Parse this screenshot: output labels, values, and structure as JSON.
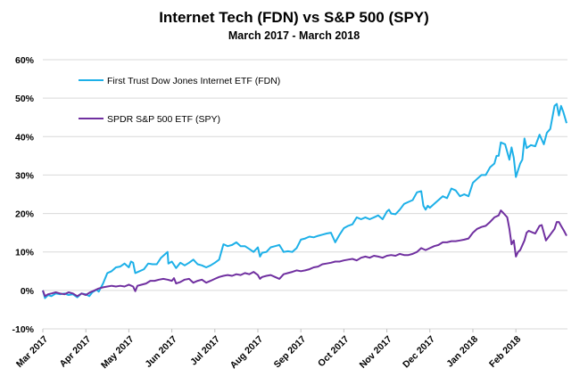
{
  "chart_data": {
    "type": "line",
    "title": "Internet Tech (FDN) vs S&P 500 (SPY)",
    "subtitle": "March 2017  - March 2018",
    "xlabel": "",
    "ylabel": "",
    "ylim": [
      -0.1,
      0.6
    ],
    "y_ticks": [
      "-10%",
      "0%",
      "10%",
      "20%",
      "30%",
      "40%",
      "50%",
      "60%"
    ],
    "x_ticks": [
      "Mar 2017",
      "Apr 2017",
      "May 2017",
      "Jun 2017",
      "Jul 2017",
      "Aug 2017",
      "Sep 2017",
      "Oct 2017",
      "Nov 2017",
      "Dec 2017",
      "Jan 2018",
      "Feb 2018"
    ],
    "grid": "horizontal",
    "legend_position": "top-left",
    "x_unit": "months since Mar 2017",
    "series": [
      {
        "name": "First Trust Dow Jones Internet ETF (FDN)",
        "color": "#1DB0E8",
        "points": [
          [
            0.0,
            0.0
          ],
          [
            0.05,
            -0.02
          ],
          [
            0.12,
            -0.012
          ],
          [
            0.2,
            -0.015
          ],
          [
            0.3,
            -0.008
          ],
          [
            0.4,
            -0.01
          ],
          [
            0.5,
            -0.008
          ],
          [
            0.6,
            -0.012
          ],
          [
            0.7,
            -0.01
          ],
          [
            0.8,
            -0.018
          ],
          [
            0.9,
            -0.008
          ],
          [
            1.0,
            -0.01
          ],
          [
            1.08,
            -0.015
          ],
          [
            1.15,
            -0.005
          ],
          [
            1.25,
            0.002
          ],
          [
            1.3,
            -0.003
          ],
          [
            1.4,
            0.018
          ],
          [
            1.5,
            0.045
          ],
          [
            1.6,
            0.05
          ],
          [
            1.7,
            0.06
          ],
          [
            1.8,
            0.062
          ],
          [
            1.9,
            0.07
          ],
          [
            2.0,
            0.06
          ],
          [
            2.05,
            0.075
          ],
          [
            2.1,
            0.072
          ],
          [
            2.15,
            0.045
          ],
          [
            2.25,
            0.05
          ],
          [
            2.35,
            0.055
          ],
          [
            2.45,
            0.07
          ],
          [
            2.55,
            0.068
          ],
          [
            2.65,
            0.068
          ],
          [
            2.75,
            0.085
          ],
          [
            2.85,
            0.095
          ],
          [
            2.9,
            0.1
          ],
          [
            2.92,
            0.07
          ],
          [
            3.0,
            0.075
          ],
          [
            3.1,
            0.058
          ],
          [
            3.2,
            0.072
          ],
          [
            3.3,
            0.065
          ],
          [
            3.4,
            0.072
          ],
          [
            3.5,
            0.08
          ],
          [
            3.6,
            0.068
          ],
          [
            3.7,
            0.065
          ],
          [
            3.8,
            0.06
          ],
          [
            3.9,
            0.065
          ],
          [
            4.0,
            0.072
          ],
          [
            4.1,
            0.08
          ],
          [
            4.2,
            0.12
          ],
          [
            4.3,
            0.115
          ],
          [
            4.4,
            0.118
          ],
          [
            4.5,
            0.125
          ],
          [
            4.6,
            0.115
          ],
          [
            4.7,
            0.115
          ],
          [
            4.8,
            0.108
          ],
          [
            4.9,
            0.1
          ],
          [
            5.0,
            0.112
          ],
          [
            5.05,
            0.088
          ],
          [
            5.1,
            0.098
          ],
          [
            5.2,
            0.1
          ],
          [
            5.3,
            0.112
          ],
          [
            5.4,
            0.115
          ],
          [
            5.5,
            0.118
          ],
          [
            5.6,
            0.1
          ],
          [
            5.7,
            0.102
          ],
          [
            5.8,
            0.1
          ],
          [
            5.9,
            0.11
          ],
          [
            6.0,
            0.132
          ],
          [
            6.1,
            0.135
          ],
          [
            6.2,
            0.14
          ],
          [
            6.3,
            0.138
          ],
          [
            6.4,
            0.142
          ],
          [
            6.5,
            0.145
          ],
          [
            6.6,
            0.148
          ],
          [
            6.7,
            0.15
          ],
          [
            6.8,
            0.125
          ],
          [
            6.9,
            0.145
          ],
          [
            7.0,
            0.162
          ],
          [
            7.1,
            0.168
          ],
          [
            7.2,
            0.172
          ],
          [
            7.3,
            0.19
          ],
          [
            7.4,
            0.185
          ],
          [
            7.5,
            0.19
          ],
          [
            7.6,
            0.185
          ],
          [
            7.7,
            0.19
          ],
          [
            7.8,
            0.195
          ],
          [
            7.9,
            0.185
          ],
          [
            8.0,
            0.205
          ],
          [
            8.05,
            0.21
          ],
          [
            8.1,
            0.2
          ],
          [
            8.2,
            0.198
          ],
          [
            8.3,
            0.21
          ],
          [
            8.4,
            0.225
          ],
          [
            8.5,
            0.23
          ],
          [
            8.6,
            0.235
          ],
          [
            8.7,
            0.255
          ],
          [
            8.8,
            0.258
          ],
          [
            8.85,
            0.22
          ],
          [
            8.9,
            0.21
          ],
          [
            8.95,
            0.22
          ],
          [
            9.0,
            0.215
          ],
          [
            9.1,
            0.225
          ],
          [
            9.2,
            0.235
          ],
          [
            9.3,
            0.245
          ],
          [
            9.4,
            0.24
          ],
          [
            9.5,
            0.265
          ],
          [
            9.6,
            0.26
          ],
          [
            9.7,
            0.245
          ],
          [
            9.8,
            0.25
          ],
          [
            9.9,
            0.245
          ],
          [
            10.0,
            0.28
          ],
          [
            10.1,
            0.29
          ],
          [
            10.2,
            0.3
          ],
          [
            10.3,
            0.3
          ],
          [
            10.4,
            0.32
          ],
          [
            10.5,
            0.33
          ],
          [
            10.55,
            0.35
          ],
          [
            10.6,
            0.35
          ],
          [
            10.65,
            0.385
          ],
          [
            10.75,
            0.38
          ],
          [
            10.8,
            0.36
          ],
          [
            10.85,
            0.34
          ],
          [
            10.9,
            0.372
          ],
          [
            10.95,
            0.345
          ],
          [
            11.0,
            0.295
          ],
          [
            11.1,
            0.33
          ],
          [
            11.15,
            0.34
          ],
          [
            11.2,
            0.395
          ],
          [
            11.25,
            0.37
          ],
          [
            11.35,
            0.378
          ],
          [
            11.45,
            0.375
          ],
          [
            11.55,
            0.405
          ],
          [
            11.65,
            0.38
          ],
          [
            11.72,
            0.41
          ],
          [
            11.8,
            0.42
          ],
          [
            11.9,
            0.48
          ],
          [
            11.95,
            0.485
          ],
          [
            12.0,
            0.455
          ],
          [
            12.05,
            0.48
          ],
          [
            12.1,
            0.465
          ],
          [
            12.18,
            0.435
          ]
        ]
      },
      {
        "name": "SPDR S&P 500 ETF (SPY)",
        "color": "#7030A0",
        "points": [
          [
            0.0,
            0.0
          ],
          [
            0.05,
            -0.015
          ],
          [
            0.12,
            -0.01
          ],
          [
            0.2,
            -0.008
          ],
          [
            0.3,
            -0.005
          ],
          [
            0.4,
            -0.008
          ],
          [
            0.5,
            -0.01
          ],
          [
            0.6,
            -0.005
          ],
          [
            0.7,
            -0.008
          ],
          [
            0.8,
            -0.015
          ],
          [
            0.9,
            -0.008
          ],
          [
            1.0,
            -0.012
          ],
          [
            1.1,
            -0.005
          ],
          [
            1.2,
            0.0
          ],
          [
            1.3,
            0.005
          ],
          [
            1.4,
            0.008
          ],
          [
            1.5,
            0.01
          ],
          [
            1.6,
            0.012
          ],
          [
            1.7,
            0.01
          ],
          [
            1.8,
            0.012
          ],
          [
            1.9,
            0.01
          ],
          [
            2.0,
            0.015
          ],
          [
            2.1,
            0.01
          ],
          [
            2.15,
            -0.002
          ],
          [
            2.2,
            0.012
          ],
          [
            2.3,
            0.015
          ],
          [
            2.4,
            0.018
          ],
          [
            2.5,
            0.025
          ],
          [
            2.6,
            0.025
          ],
          [
            2.7,
            0.028
          ],
          [
            2.8,
            0.03
          ],
          [
            2.9,
            0.028
          ],
          [
            3.0,
            0.025
          ],
          [
            3.05,
            0.032
          ],
          [
            3.1,
            0.018
          ],
          [
            3.2,
            0.022
          ],
          [
            3.3,
            0.028
          ],
          [
            3.4,
            0.03
          ],
          [
            3.5,
            0.02
          ],
          [
            3.6,
            0.025
          ],
          [
            3.7,
            0.028
          ],
          [
            3.8,
            0.02
          ],
          [
            3.9,
            0.025
          ],
          [
            4.0,
            0.03
          ],
          [
            4.1,
            0.035
          ],
          [
            4.2,
            0.038
          ],
          [
            4.3,
            0.04
          ],
          [
            4.4,
            0.038
          ],
          [
            4.5,
            0.042
          ],
          [
            4.6,
            0.04
          ],
          [
            4.7,
            0.045
          ],
          [
            4.8,
            0.042
          ],
          [
            4.9,
            0.048
          ],
          [
            5.0,
            0.04
          ],
          [
            5.05,
            0.03
          ],
          [
            5.1,
            0.035
          ],
          [
            5.2,
            0.038
          ],
          [
            5.3,
            0.04
          ],
          [
            5.4,
            0.035
          ],
          [
            5.5,
            0.03
          ],
          [
            5.6,
            0.042
          ],
          [
            5.7,
            0.045
          ],
          [
            5.8,
            0.048
          ],
          [
            5.9,
            0.052
          ],
          [
            6.0,
            0.05
          ],
          [
            6.1,
            0.052
          ],
          [
            6.2,
            0.055
          ],
          [
            6.3,
            0.06
          ],
          [
            6.4,
            0.062
          ],
          [
            6.5,
            0.068
          ],
          [
            6.6,
            0.07
          ],
          [
            6.7,
            0.072
          ],
          [
            6.8,
            0.075
          ],
          [
            6.9,
            0.075
          ],
          [
            7.0,
            0.078
          ],
          [
            7.1,
            0.08
          ],
          [
            7.2,
            0.082
          ],
          [
            7.3,
            0.078
          ],
          [
            7.4,
            0.085
          ],
          [
            7.5,
            0.088
          ],
          [
            7.6,
            0.085
          ],
          [
            7.7,
            0.09
          ],
          [
            7.8,
            0.088
          ],
          [
            7.9,
            0.085
          ],
          [
            8.0,
            0.09
          ],
          [
            8.1,
            0.092
          ],
          [
            8.2,
            0.09
          ],
          [
            8.3,
            0.095
          ],
          [
            8.4,
            0.092
          ],
          [
            8.5,
            0.092
          ],
          [
            8.6,
            0.095
          ],
          [
            8.7,
            0.1
          ],
          [
            8.8,
            0.11
          ],
          [
            8.9,
            0.105
          ],
          [
            9.0,
            0.11
          ],
          [
            9.1,
            0.115
          ],
          [
            9.2,
            0.118
          ],
          [
            9.3,
            0.125
          ],
          [
            9.4,
            0.125
          ],
          [
            9.5,
            0.128
          ],
          [
            9.6,
            0.128
          ],
          [
            9.7,
            0.13
          ],
          [
            9.8,
            0.132
          ],
          [
            9.9,
            0.135
          ],
          [
            10.0,
            0.15
          ],
          [
            10.1,
            0.16
          ],
          [
            10.2,
            0.165
          ],
          [
            10.3,
            0.168
          ],
          [
            10.4,
            0.178
          ],
          [
            10.5,
            0.19
          ],
          [
            10.6,
            0.195
          ],
          [
            10.65,
            0.208
          ],
          [
            10.72,
            0.2
          ],
          [
            10.8,
            0.19
          ],
          [
            10.85,
            0.16
          ],
          [
            10.9,
            0.12
          ],
          [
            10.95,
            0.13
          ],
          [
            11.0,
            0.088
          ],
          [
            11.05,
            0.1
          ],
          [
            11.1,
            0.105
          ],
          [
            11.2,
            0.13
          ],
          [
            11.25,
            0.15
          ],
          [
            11.3,
            0.155
          ],
          [
            11.4,
            0.15
          ],
          [
            11.45,
            0.148
          ],
          [
            11.55,
            0.168
          ],
          [
            11.6,
            0.17
          ],
          [
            11.65,
            0.15
          ],
          [
            11.7,
            0.13
          ],
          [
            11.8,
            0.145
          ],
          [
            11.9,
            0.16
          ],
          [
            11.95,
            0.178
          ],
          [
            12.0,
            0.178
          ],
          [
            12.05,
            0.168
          ],
          [
            12.12,
            0.155
          ],
          [
            12.18,
            0.142
          ]
        ]
      }
    ]
  }
}
